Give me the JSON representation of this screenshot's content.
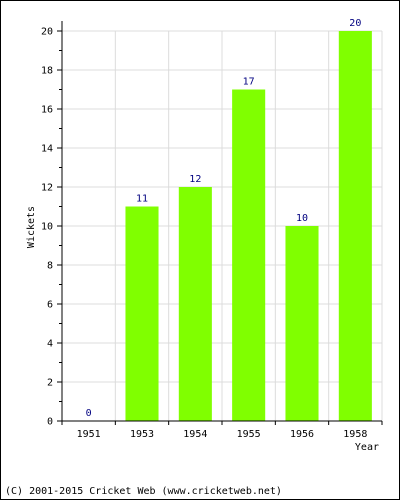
{
  "chart_data": {
    "type": "bar",
    "categories": [
      "1951",
      "1953",
      "1954",
      "1955",
      "1956",
      "1958"
    ],
    "values": [
      0,
      11,
      12,
      17,
      10,
      20
    ],
    "title": "",
    "xlabel": "Year",
    "ylabel": "Wickets",
    "ylim": [
      0,
      20
    ],
    "yticks": [
      0,
      2,
      4,
      6,
      8,
      10,
      12,
      14,
      16,
      18,
      20
    ],
    "grid": true,
    "data_labels": true,
    "bar_color": "#80ff00",
    "value_label_color": "#000080"
  },
  "footer": {
    "copyright": "(C) 2001-2015 Cricket Web (www.cricketweb.net)"
  }
}
